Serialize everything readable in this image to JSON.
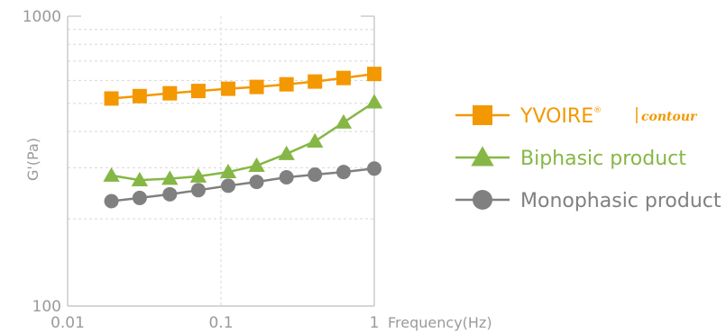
{
  "chart_data": {
    "type": "line",
    "xscale": "log",
    "yscale": "log",
    "xlim": [
      0.01,
      1
    ],
    "ylim": [
      100,
      1000
    ],
    "x_ticks": [
      "0.01",
      "0.1",
      "1"
    ],
    "y_ticks": [
      "100",
      "1000"
    ],
    "xlabel": "Frequency(Hz)",
    "ylabel": "G'(Pa)",
    "grid": true,
    "legend_position": "right",
    "x": [
      0.0193,
      0.0295,
      0.0464,
      0.0712,
      0.1115,
      0.1709,
      0.2676,
      0.4102,
      0.6306,
      1.0
    ],
    "series": [
      {
        "name": "YVOIRE contour",
        "name_main": "YVOIRE",
        "name_reg": "®",
        "name_sub": "contour",
        "marker": "square",
        "color": "#f39800",
        "values": [
          520,
          530,
          542,
          552,
          562,
          570,
          582,
          595,
          612,
          632
        ]
      },
      {
        "name": "Biphasic product",
        "marker": "triangle",
        "color": "#86b746",
        "values": [
          282,
          272,
          275,
          280,
          290,
          305,
          335,
          370,
          430,
          505
        ]
      },
      {
        "name": "Monophasic product",
        "marker": "circle",
        "color": "#808080",
        "values": [
          230,
          236,
          243,
          251,
          260,
          268,
          278,
          284,
          290,
          298
        ]
      }
    ]
  }
}
